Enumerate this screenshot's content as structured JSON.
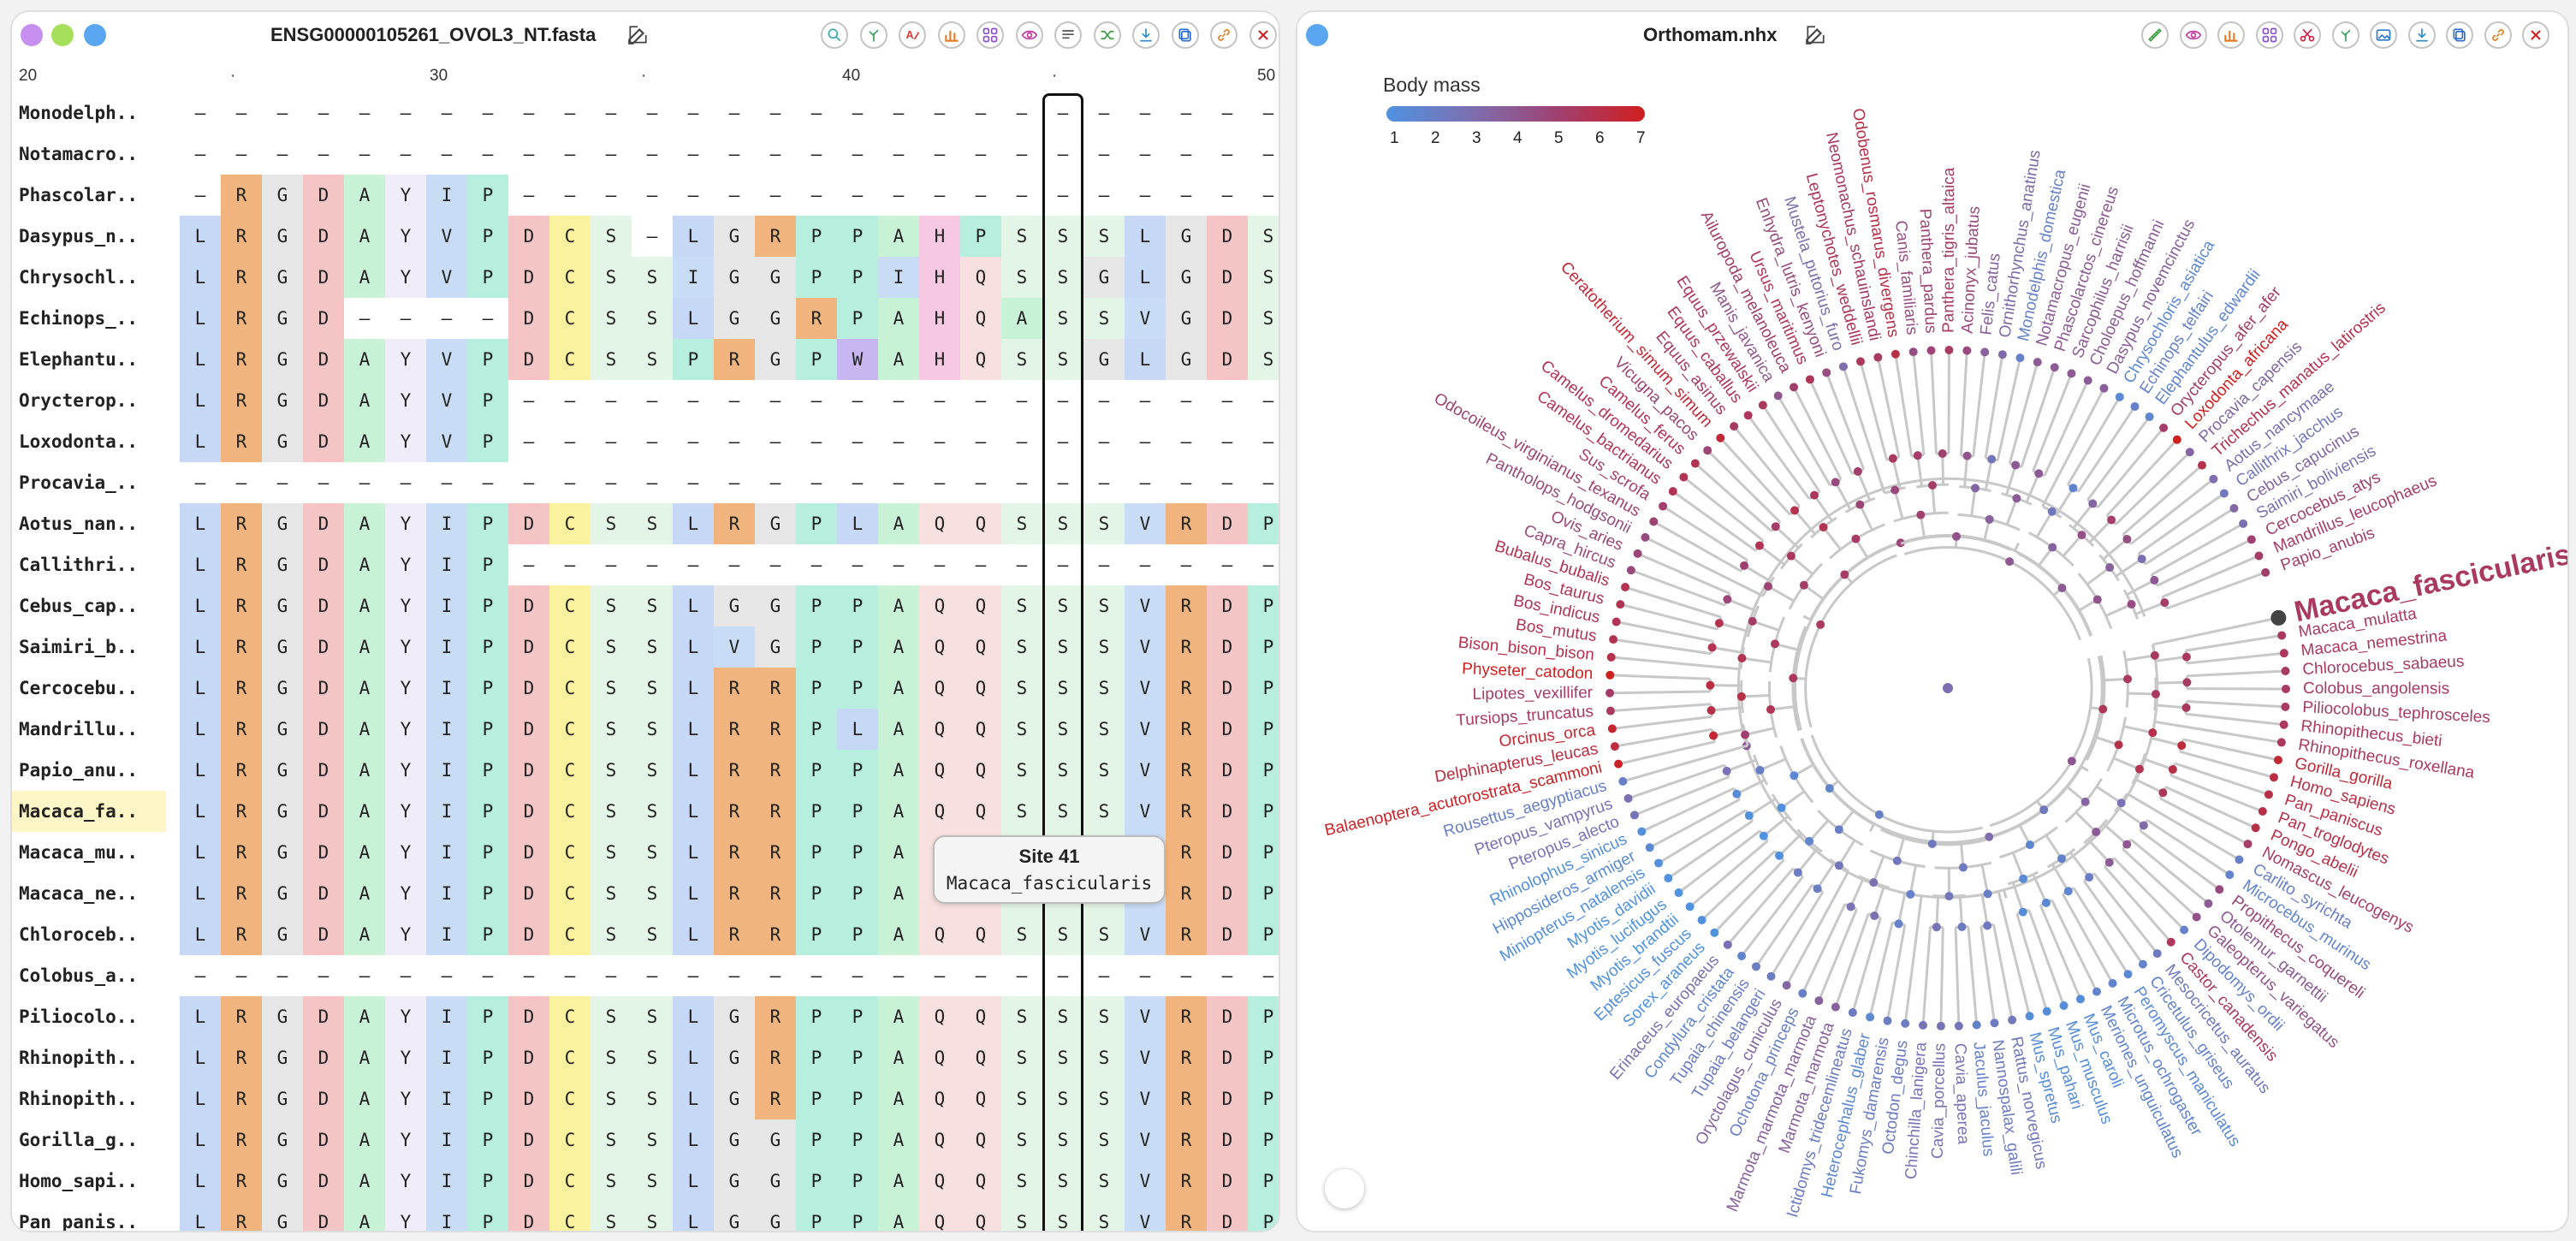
{
  "window_controls": {
    "colors": [
      "#c78ff0",
      "#a6e05a",
      "#5aa6f0"
    ]
  },
  "alignment_panel": {
    "title": "ENSG00000105261_OVOL3_NT.fasta",
    "toolbar_icons": [
      "search-icon",
      "tree-icon",
      "font-color-icon",
      "bar-chart-icon",
      "grid-icon",
      "eye-icon",
      "filter-list-icon",
      "shuffle-icon",
      "download-icon",
      "copy-icon",
      "link-icon",
      "close-icon"
    ],
    "ruler_labels": [
      "20",
      "·",
      "30",
      "·",
      "40",
      "·",
      "50"
    ],
    "ruler_positions": [
      20,
      25,
      30,
      35,
      40,
      45,
      50
    ],
    "first_column": 20,
    "highlighted_column": 41,
    "highlighted_row": "Macaca_fa..",
    "tooltip": {
      "title": "Site 41",
      "subtitle": "Macaca_fascicularis"
    },
    "rows": [
      {
        "name": "Monodelph..",
        "seq": "-----------------------------"
      },
      {
        "name": "Notamacro..",
        "seq": "-----------------------------"
      },
      {
        "name": "Phascolar..",
        "seq": "-RGDAYIP---------------------"
      },
      {
        "name": "Dasypus_n..",
        "seq": "LRGDAYVPDCS-LGRPPAHPSSSLGDS"
      },
      {
        "name": "Chrysochl..",
        "seq": "LRGDAYVPDCSSIGGPPIHQSSGLGDS"
      },
      {
        "name": "Echinops_..",
        "seq": "LRGD----DCSSLGGRPAHQASSVGDS"
      },
      {
        "name": "Elephantu..",
        "seq": "LRGDAYVPDCSSPRGPWAHQSSGLGDS"
      },
      {
        "name": "Orycterop..",
        "seq": "LRGDAYVP-------------------"
      },
      {
        "name": "Loxodonta..",
        "seq": "LRGDAYVP-------------------"
      },
      {
        "name": "Procavia_..",
        "seq": "---------------------------"
      },
      {
        "name": "Aotus_nan..",
        "seq": "LRGDAYIPDCSSLRGPLAQQSSSVRDP"
      },
      {
        "name": "Callithri..",
        "seq": "LRGDAYIP-------------------"
      },
      {
        "name": "Cebus_cap..",
        "seq": "LRGDAYIPDCSSLGGPPAQQSSSVRDP"
      },
      {
        "name": "Saimiri_b..",
        "seq": "LRGDAYIPDCSSLVGPPAQQSSSVRDP"
      },
      {
        "name": "Cercocebu..",
        "seq": "LRGDAYIPDCSSLRRPPAQQSSSVRDP"
      },
      {
        "name": "Mandrillu..",
        "seq": "LRGDAYIPDCSSLRRPLAQQSSSVRDP"
      },
      {
        "name": "Papio_anu..",
        "seq": "LRGDAYIPDCSSLRRPPAQQSSSVRDP"
      },
      {
        "name": "Macaca_fa..",
        "seq": "LRGDAYIPDCSSLRRPPAQQSSSVRDP"
      },
      {
        "name": "Macaca_mu..",
        "seq": "LRGDAYIPDCSSLRRPPAQQSSSVRDP"
      },
      {
        "name": "Macaca_ne..",
        "seq": "LRGDAYIPDCSSLRRPPAQQSSSVRDP"
      },
      {
        "name": "Chloroceb..",
        "seq": "LRGDAYIPDCSSLRRPPAQQSSSVRDP"
      },
      {
        "name": "Colobus_a..",
        "seq": "---------------------------"
      },
      {
        "name": "Piliocolo..",
        "seq": "LRGDAYIPDCSSLGRPPAQQSSSVRDP"
      },
      {
        "name": "Rhinopith..",
        "seq": "LRGDAYIPDCSSLGRPPAQQSSSVRDP"
      },
      {
        "name": "Rhinopith..",
        "seq": "LRGDAYIPDCSSLGRPPAQQSSSVRDP"
      },
      {
        "name": "Gorilla_g..",
        "seq": "LRGDAYIPDCSSLGGPPAQQSSSVRDP"
      },
      {
        "name": "Homo_sapi..",
        "seq": "LRGDAYIPDCSSLGGPPAQQSSSVRDP"
      },
      {
        "name": "Pan_panis..",
        "seq": "LRGDAYIPDCSSLGGPPAQQSSSVRDP"
      }
    ],
    "aa_colors": {
      "L": "#c6d8f5",
      "R": "#f2b47e",
      "G": "#e6e6e6",
      "D": "#f5c4c4",
      "A": "#c8f2d6",
      "Y": "#f0ecfa",
      "I": "#c9dcf5",
      "V": "#c9dcf5",
      "P": "#b7eedd",
      "C": "#fbf2a0",
      "S": "#e3f5e6",
      "H": "#f6c8e1",
      "Q": "#f9e0e0",
      "W": "#c7b6f0",
      "-": "#ffffff"
    }
  },
  "tree_panel": {
    "title": "Orthomam.nhx",
    "toolbar_icons": [
      "ruler-icon",
      "eye-icon",
      "bar-chart-icon",
      "grid-icon",
      "scissors-icon",
      "tree-icon",
      "image-icon",
      "download-icon",
      "copy-icon",
      "link-icon",
      "close-icon"
    ],
    "legend": {
      "title": "Body mass",
      "ticks": [
        "1",
        "2",
        "3",
        "4",
        "5",
        "6",
        "7"
      ],
      "low_color": "#4f92e0",
      "high_color": "#d01f1f"
    },
    "highlighted_taxon": "Macaca_fascicularis",
    "taxa": [
      {
        "name": "Macaca_fascicularis",
        "mass": 5.4
      },
      {
        "name": "Macaca_mulatta",
        "mass": 5.4
      },
      {
        "name": "Macaca_nemestrina",
        "mass": 5.5
      },
      {
        "name": "Chlorocebus_sabaeus",
        "mass": 5.3
      },
      {
        "name": "Colobus_angolensis",
        "mass": 5.3
      },
      {
        "name": "Piliocolobus_tephrosceles",
        "mass": 5.3
      },
      {
        "name": "Rhinopithecus_bieti",
        "mass": 5.5
      },
      {
        "name": "Rhinopithecus_roxellana",
        "mass": 5.5
      },
      {
        "name": "Gorilla_gorilla",
        "mass": 6.4
      },
      {
        "name": "Homo_sapiens",
        "mass": 6.1
      },
      {
        "name": "Pan_paniscus",
        "mass": 6.0
      },
      {
        "name": "Pan_troglodytes",
        "mass": 6.0
      },
      {
        "name": "Pongo_abelii",
        "mass": 6.0
      },
      {
        "name": "Nomascus_leucogenys",
        "mass": 5.2
      },
      {
        "name": "Carlito_syrichta",
        "mass": 2.1
      },
      {
        "name": "Microcebus_murinus",
        "mass": 1.8
      },
      {
        "name": "Propithecus_coquereli",
        "mass": 4.6
      },
      {
        "name": "Otolemur_garnettii",
        "mass": 3.8
      },
      {
        "name": "Galeopterus_variegatus",
        "mass": 4.2
      },
      {
        "name": "Dipodomys_ordii",
        "mass": 2.0
      },
      {
        "name": "Castor_canadensis",
        "mass": 5.5
      },
      {
        "name": "Mesocricetus_auratus",
        "mass": 2.4
      },
      {
        "name": "Cricetulus_griseus",
        "mass": 1.9
      },
      {
        "name": "Peromyscus_maniculatus",
        "mass": 1.5
      },
      {
        "name": "Microtus_ochrogaster",
        "mass": 1.8
      },
      {
        "name": "Meriones_unguiculatus",
        "mass": 1.8
      },
      {
        "name": "Mus_caroli",
        "mass": 1.3
      },
      {
        "name": "Mus_musculus",
        "mass": 1.3
      },
      {
        "name": "Mus_pahari",
        "mass": 1.3
      },
      {
        "name": "Mus_spretus",
        "mass": 1.3
      },
      {
        "name": "Rattus_norvegicus",
        "mass": 2.5
      },
      {
        "name": "Nannospalax_galili",
        "mass": 2.3
      },
      {
        "name": "Jaculus_jaculus",
        "mass": 1.9
      },
      {
        "name": "Cavia_aperea",
        "mass": 2.7
      },
      {
        "name": "Cavia_porcellus",
        "mass": 2.8
      },
      {
        "name": "Chinchilla_lanigera",
        "mass": 2.7
      },
      {
        "name": "Octodon_degus",
        "mass": 2.3
      },
      {
        "name": "Fukomys_damarensis",
        "mass": 2.2
      },
      {
        "name": "Heterocephalus_glaber",
        "mass": 1.6
      },
      {
        "name": "Ictidomys_tridecemlineatus",
        "mass": 2.3
      },
      {
        "name": "Marmota_marmota",
        "mass": 3.6
      },
      {
        "name": "Marmota_marmota_marmota",
        "mass": 3.6
      },
      {
        "name": "Ochotona_princeps",
        "mass": 2.1
      },
      {
        "name": "Oryctolagus_cuniculus",
        "mass": 3.4
      },
      {
        "name": "Tupaia_belangeri",
        "mass": 2.2
      },
      {
        "name": "Tupaia_chinensis",
        "mass": 2.2
      },
      {
        "name": "Condylura_cristata",
        "mass": 1.7
      },
      {
        "name": "Erinaceus_europaeus",
        "mass": 2.9
      },
      {
        "name": "Sorex_araneus",
        "mass": 1.0
      },
      {
        "name": "Eptesicus_fuscus",
        "mass": 1.2
      },
      {
        "name": "Myotis_brandtii",
        "mass": 1.0
      },
      {
        "name": "Myotis_lucifugus",
        "mass": 1.0
      },
      {
        "name": "Myotis_davidii",
        "mass": 1.0
      },
      {
        "name": "Miniopterus_natalensis",
        "mass": 1.1
      },
      {
        "name": "Hipposideros_armiger",
        "mass": 1.5
      },
      {
        "name": "Rhinolophus_sinicus",
        "mass": 1.2
      },
      {
        "name": "Pteropus_alecto",
        "mass": 2.7
      },
      {
        "name": "Pteropus_vampyrus",
        "mass": 3.0
      },
      {
        "name": "Rousettus_aegyptiacus",
        "mass": 2.1
      },
      {
        "name": "Balaenoptera_acutorostrata_scammoni",
        "mass": 6.8
      },
      {
        "name": "Delphinapterus_leucas",
        "mass": 6.2
      },
      {
        "name": "Orcinus_orca",
        "mass": 6.6
      },
      {
        "name": "Tursiops_truncatus",
        "mass": 5.4
      },
      {
        "name": "Lipotes_vexillifer",
        "mass": 5.2
      },
      {
        "name": "Physeter_catodon",
        "mass": 7.0
      },
      {
        "name": "Bison_bison_bison",
        "mass": 5.9
      },
      {
        "name": "Bos_mutus",
        "mass": 5.8
      },
      {
        "name": "Bos_indicus",
        "mass": 5.7
      },
      {
        "name": "Bos_taurus",
        "mass": 5.7
      },
      {
        "name": "Bubalus_bubalis",
        "mass": 5.8
      },
      {
        "name": "Capra_hircus",
        "mass": 4.6
      },
      {
        "name": "Ovis_aries",
        "mass": 4.8
      },
      {
        "name": "Pantholops_hodgsonii",
        "mass": 4.5
      },
      {
        "name": "Odocoileus_virginianus_texanus",
        "mass": 4.9
      },
      {
        "name": "Sus_scrofa",
        "mass": 5.1
      },
      {
        "name": "Camelus_bactrianus",
        "mass": 5.7
      },
      {
        "name": "Camelus_dromedarius",
        "mass": 5.7
      },
      {
        "name": "Camelus_ferus",
        "mass": 5.7
      },
      {
        "name": "Vicugna_pacos",
        "mass": 4.8
      },
      {
        "name": "Ceratotherium_simum_simum",
        "mass": 6.4
      },
      {
        "name": "Equus_asinus",
        "mass": 5.3
      },
      {
        "name": "Equus_caballus",
        "mass": 5.6
      },
      {
        "name": "Equus_przewalskii",
        "mass": 5.5
      },
      {
        "name": "Manis_javanica",
        "mass": 4.0
      },
      {
        "name": "Ailuropoda_melanoleuca",
        "mass": 5.1
      },
      {
        "name": "Ursus_maritimus",
        "mass": 5.6
      },
      {
        "name": "Enhydra_lutris_kenyoni",
        "mass": 4.5
      },
      {
        "name": "Mustela_putorius_furo",
        "mass": 3.1
      },
      {
        "name": "Leptonychotes_weddellii",
        "mass": 5.6
      },
      {
        "name": "Neomonachus_schauinslandi",
        "mass": 5.3
      },
      {
        "name": "Odobenus_rosmarus_divergens",
        "mass": 6.0
      },
      {
        "name": "Canis_familiaris",
        "mass": 4.4
      },
      {
        "name": "Panthera_pardus",
        "mass": 4.8
      },
      {
        "name": "Panthera_tigris_altaica",
        "mass": 5.3
      },
      {
        "name": "Acinonyx_jubatus",
        "mass": 4.6
      },
      {
        "name": "Felis_catus",
        "mass": 3.6
      },
      {
        "name": "Ornithorhynchus_anatinus",
        "mass": 3.2
      },
      {
        "name": "Monodelphis_domestica",
        "mass": 2.0
      },
      {
        "name": "Notamacropus_eugenii",
        "mass": 3.8
      },
      {
        "name": "Phascolarctos_cinereus",
        "mass": 3.9
      },
      {
        "name": "Sarcophilus_harrisii",
        "mass": 3.9
      },
      {
        "name": "Choloepus_hoffmanni",
        "mass": 3.8
      },
      {
        "name": "Dasypus_novemcinctus",
        "mass": 3.7
      },
      {
        "name": "Chrysochloris_asiatica",
        "mass": 1.6
      },
      {
        "name": "Echinops_telfairi",
        "mass": 2.0
      },
      {
        "name": "Elephantulus_edwardii",
        "mass": 1.7
      },
      {
        "name": "Orycteropus_afer_afer",
        "mass": 5.2
      },
      {
        "name": "Loxodonta_africana",
        "mass": 7.0
      },
      {
        "name": "Procavia_capensis",
        "mass": 3.4
      },
      {
        "name": "Trichechus_manatus_latirostris",
        "mass": 5.9
      },
      {
        "name": "Aotus_nancymaae",
        "mass": 3.0
      },
      {
        "name": "Callithrix_jacchus",
        "mass": 2.5
      },
      {
        "name": "Cebus_capucinus",
        "mass": 3.4
      },
      {
        "name": "Saimiri_boliviensis",
        "mass": 2.9
      },
      {
        "name": "Cercocebus_atys",
        "mass": 5.0
      },
      {
        "name": "Mandrillus_leucophaeus",
        "mass": 5.2
      },
      {
        "name": "Papio_anubis",
        "mass": 5.1
      }
    ]
  }
}
